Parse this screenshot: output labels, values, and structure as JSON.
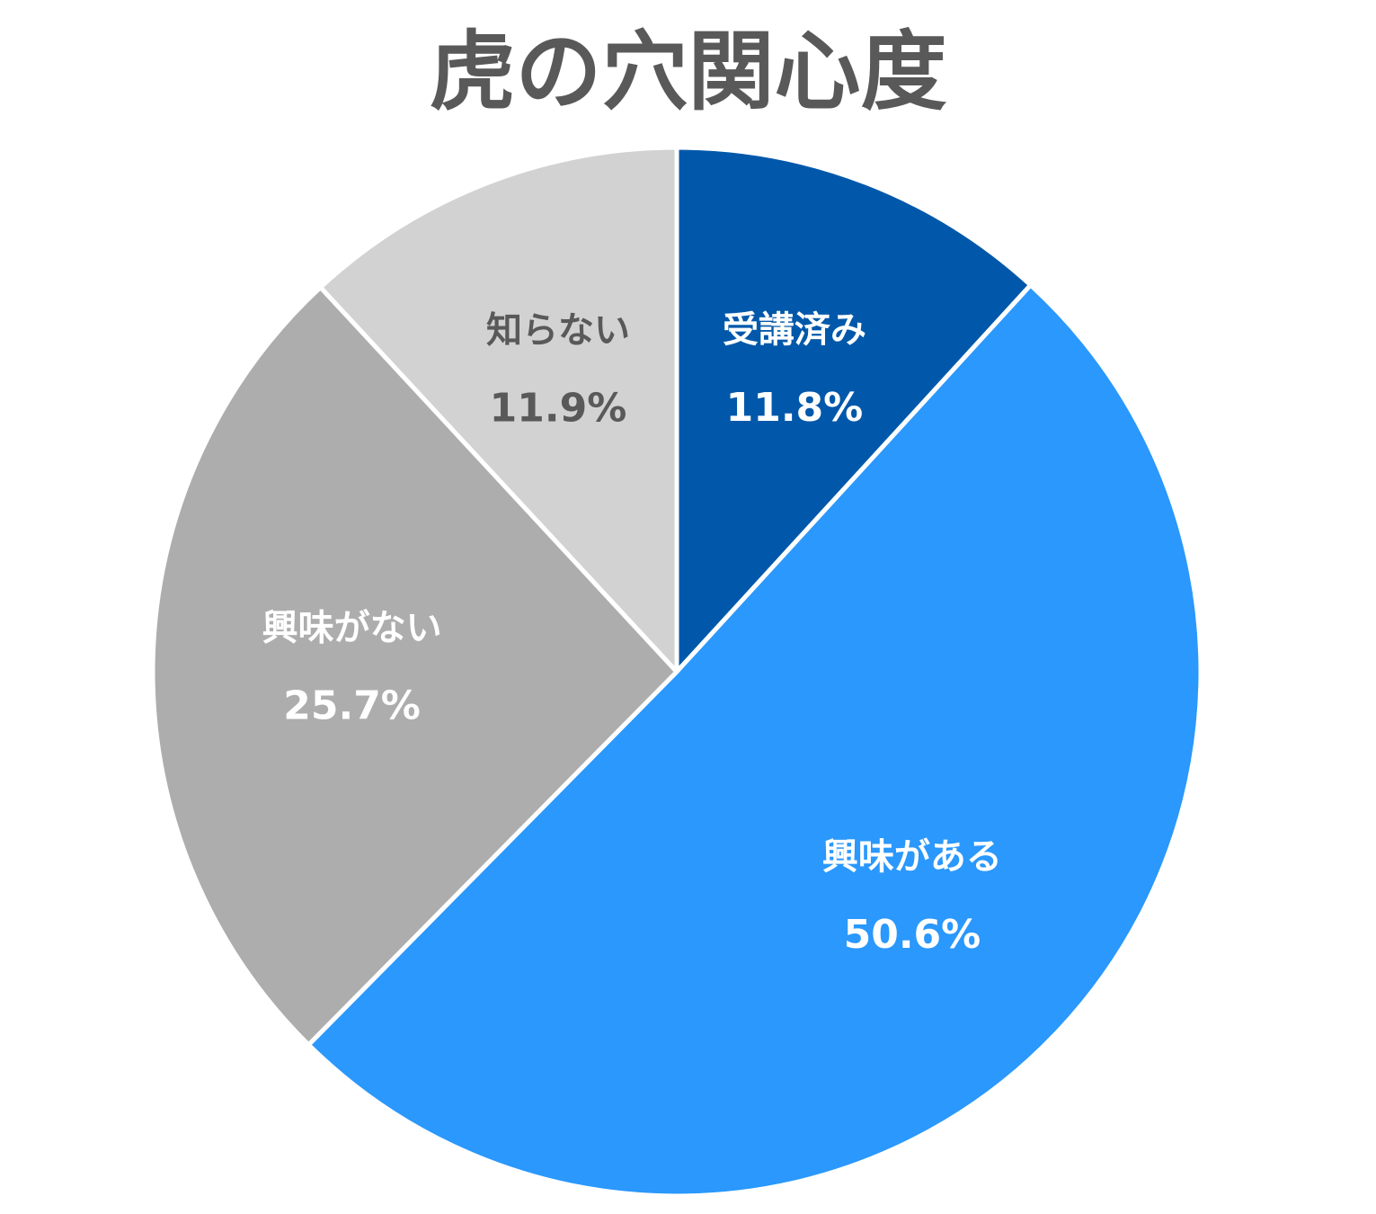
{
  "chart_data": {
    "type": "pie",
    "title": "虎の穴関心度",
    "start_angle_deg": 0,
    "direction": "clockwise",
    "slices": [
      {
        "label": "受講済み",
        "value": 11.8,
        "value_label": "11.8%",
        "color": "#0158AA",
        "text_color": "#FFFFFF"
      },
      {
        "label": "興味がある",
        "value": 50.6,
        "value_label": "50.6%",
        "color": "#2A98FC",
        "text_color": "#FFFFFF"
      },
      {
        "label": "興味がない",
        "value": 25.7,
        "value_label": "25.7%",
        "color": "#ADADAD",
        "text_color": "#FFFFFF"
      },
      {
        "label": "知らない",
        "value": 11.9,
        "value_label": "11.9%",
        "color": "#D2D2D2",
        "text_color": "#595959"
      }
    ]
  }
}
